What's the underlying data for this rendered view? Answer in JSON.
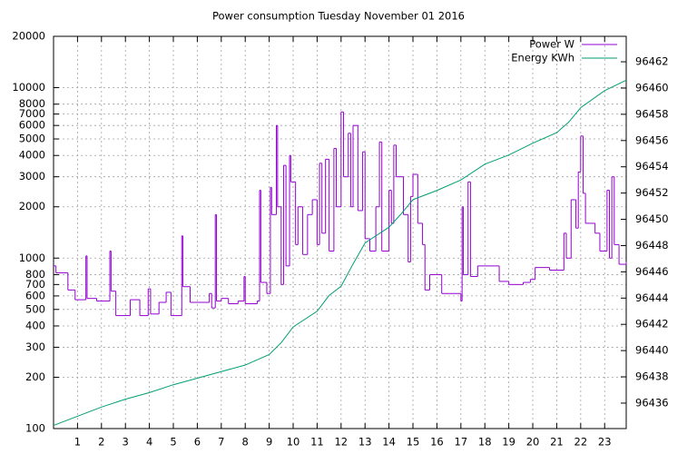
{
  "chart_data": {
    "type": "line",
    "title": "Power consumption Tuesday November 01 2016",
    "xlim": [
      0,
      23.9
    ],
    "xticks": [
      1,
      2,
      3,
      4,
      5,
      6,
      7,
      8,
      9,
      10,
      11,
      12,
      13,
      14,
      15,
      16,
      17,
      18,
      19,
      20,
      21,
      22,
      23
    ],
    "ylim": [
      100,
      20000
    ],
    "log_y": true,
    "yticks": [
      100,
      200,
      300,
      400,
      500,
      600,
      700,
      800,
      1000,
      2000,
      3000,
      4000,
      5000,
      6000,
      7000,
      8000,
      10000,
      20000
    ],
    "y2lim": [
      96434.06,
      96463.94
    ],
    "y2ticks": [
      96436,
      96438,
      96440,
      96442,
      96444,
      96446,
      96448,
      96450,
      96452,
      96454,
      96456,
      96458,
      96460,
      96462
    ],
    "grid": true,
    "legend": "top-right",
    "series": [
      {
        "name": "Power W",
        "color": "#9400d3",
        "steps": true,
        "x": [
          0,
          0.1,
          0.6,
          0.9,
          1.35,
          1.4,
          1.8,
          2.35,
          2.4,
          2.6,
          3.2,
          3.6,
          3.95,
          4.05,
          4.4,
          4.7,
          4.9,
          5.35,
          5.4,
          5.7,
          6.5,
          6.6,
          6.75,
          6.8,
          7.0,
          7.3,
          7.7,
          7.95,
          8.0,
          8.5,
          8.6,
          8.65,
          8.9,
          9.05,
          9.1,
          9.3,
          9.35,
          9.5,
          9.6,
          9.7,
          9.85,
          9.9,
          10.1,
          10.2,
          10.4,
          10.6,
          10.8,
          11.0,
          11.1,
          11.2,
          11.35,
          11.5,
          11.7,
          11.8,
          12.0,
          12.1,
          12.3,
          12.4,
          12.5,
          12.7,
          12.9,
          13.0,
          13.2,
          13.45,
          13.6,
          13.7,
          14.0,
          14.1,
          14.2,
          14.3,
          14.6,
          14.8,
          14.9,
          15.0,
          15.2,
          15.4,
          15.5,
          15.7,
          16.2,
          17.0,
          17.05,
          17.1,
          17.3,
          17.4,
          17.7,
          18.6,
          19.0,
          19.6,
          19.9,
          20.1,
          20.7,
          21.3,
          21.4,
          21.6,
          21.8,
          21.9,
          22.0,
          22.1,
          22.2,
          22.6,
          22.8,
          23.1,
          23.2,
          23.3,
          23.4,
          23.6,
          23.9
        ],
        "values": [
          900,
          820,
          650,
          570,
          1030,
          580,
          560,
          1100,
          640,
          460,
          570,
          460,
          660,
          470,
          550,
          630,
          460,
          1350,
          680,
          550,
          620,
          510,
          1800,
          560,
          580,
          540,
          560,
          780,
          540,
          560,
          2500,
          720,
          620,
          2600,
          1800,
          6000,
          2000,
          700,
          3500,
          900,
          4000,
          2800,
          1200,
          2000,
          1050,
          1800,
          2200,
          1200,
          3600,
          1400,
          3800,
          1100,
          4400,
          2000,
          7200,
          3000,
          5400,
          2000,
          6000,
          1900,
          4200,
          1300,
          1100,
          2000,
          4800,
          1100,
          2500,
          1600,
          4600,
          3000,
          1800,
          950,
          2300,
          3100,
          1600,
          1200,
          650,
          800,
          620,
          560,
          2000,
          800,
          2800,
          780,
          900,
          730,
          700,
          720,
          750,
          880,
          850,
          1400,
          1000,
          2200,
          1500,
          3200,
          5200,
          2400,
          1600,
          1400,
          1100,
          2500,
          1000,
          3000,
          1200,
          920,
          950
        ]
      },
      {
        "name": "Energy KWh",
        "color": "#009e73",
        "axis": "y2",
        "x": [
          0,
          1,
          2,
          3,
          4,
          5,
          6,
          7,
          8,
          9,
          9.5,
          10,
          11,
          11.5,
          12,
          12.5,
          13,
          14,
          14.5,
          15,
          16,
          17,
          18,
          19,
          20,
          21,
          21.5,
          22,
          23,
          23.9
        ],
        "values": [
          96434.3,
          96435.0,
          96435.7,
          96436.3,
          96436.8,
          96437.4,
          96437.9,
          96438.4,
          96438.9,
          96439.7,
          96440.6,
          96441.8,
          96443.0,
          96444.2,
          96444.9,
          96446.6,
          96448.2,
          96449.4,
          96450.4,
          96451.5,
          96452.2,
          96453.0,
          96454.2,
          96454.9,
          96455.8,
          96456.6,
          96457.4,
          96458.5,
          96459.8,
          96460.6
        ]
      }
    ]
  }
}
